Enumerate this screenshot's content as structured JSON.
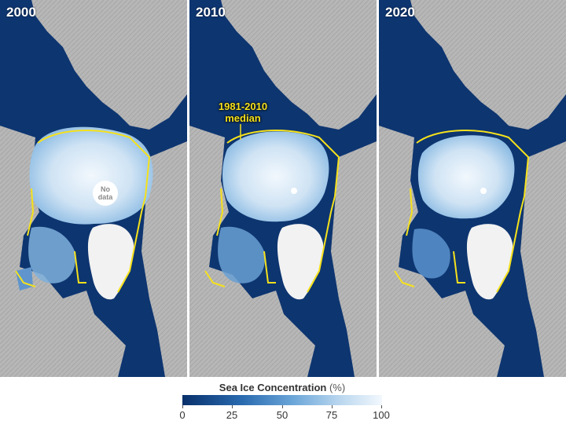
{
  "panels": [
    {
      "year": "2000",
      "no_data_text": "No data"
    },
    {
      "year": "2010",
      "median_label": "1981-2010 median"
    },
    {
      "year": "2020"
    }
  ],
  "legend": {
    "title": "Sea Ice Concentration",
    "unit": "(%)",
    "ticks": [
      "0",
      "25",
      "50",
      "75",
      "100"
    ]
  },
  "colors": {
    "ocean": "#0d3570",
    "land": "#b4b4b4",
    "greenland": "#f2f2f2",
    "median_line": "#f5e11c",
    "ice_high": "#eaf3fb",
    "ice_mid": "#9cc4e6"
  }
}
